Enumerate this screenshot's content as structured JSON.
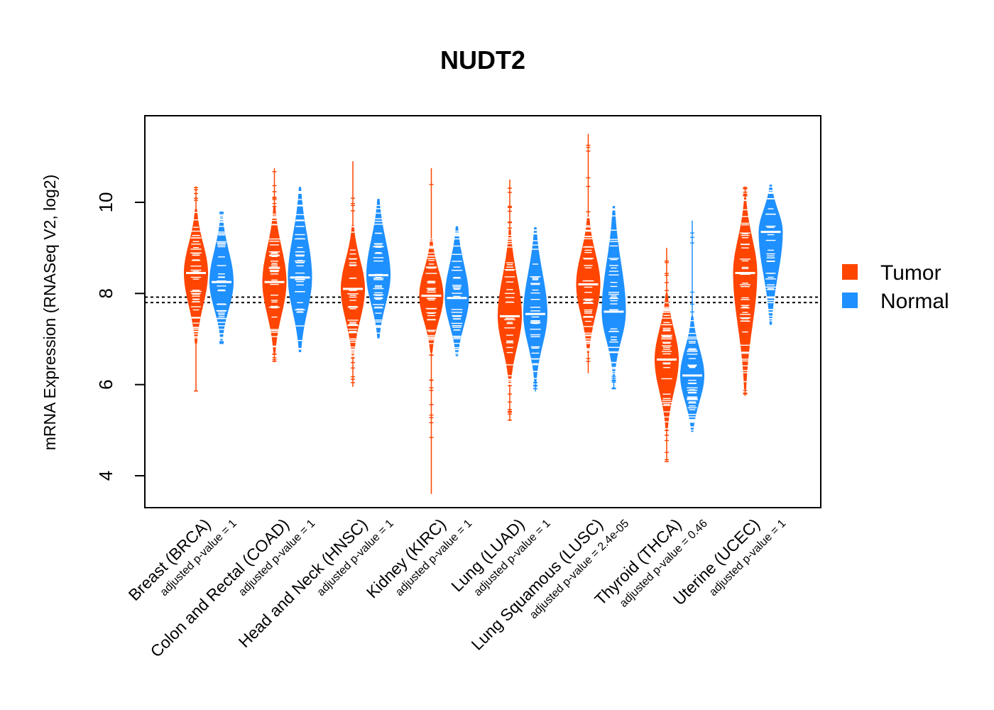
{
  "chart_data": {
    "type": "violin",
    "title": "NUDT2",
    "xlabel": "",
    "ylabel": "mRNA Expression (RNASeq V2, log2)",
    "ylim": [
      3.3,
      11.9
    ],
    "yticks": [
      4,
      6,
      8,
      10
    ],
    "reference_lines": [
      7.8,
      7.92
    ],
    "legend": {
      "position": "right",
      "entries": [
        {
          "name": "Tumor",
          "color": "#FF4500"
        },
        {
          "name": "Normal",
          "color": "#1E90FF"
        }
      ]
    },
    "categories": [
      {
        "label": "Breast (BRCA)",
        "pvalue_text": "adjusted p-value = 1",
        "tumor": {
          "median": 8.45,
          "core": [
            6.9,
            9.85
          ],
          "range": [
            5.85,
            10.35
          ]
        },
        "normal": {
          "median": 8.25,
          "core": [
            6.95,
            9.75
          ],
          "range": [
            6.9,
            9.8
          ]
        }
      },
      {
        "label": "Colon and Rectal (COAD)",
        "pvalue_text": "adjusted p-value = 1",
        "tumor": {
          "median": 8.25,
          "core": [
            6.7,
            9.9
          ],
          "range": [
            6.5,
            10.75
          ]
        },
        "normal": {
          "median": 8.35,
          "core": [
            6.7,
            10.35
          ],
          "range": [
            6.7,
            10.35
          ]
        }
      },
      {
        "label": "Head and Neck (HNSC)",
        "pvalue_text": "adjusted p-value = 1",
        "tumor": {
          "median": 8.1,
          "core": [
            6.6,
            9.5
          ],
          "range": [
            5.95,
            10.9
          ]
        },
        "normal": {
          "median": 8.4,
          "core": [
            7.0,
            10.1
          ],
          "range": [
            7.0,
            10.1
          ]
        }
      },
      {
        "label": "Kidney (KIRC)",
        "pvalue_text": "adjusted p-value = 1",
        "tumor": {
          "median": 7.95,
          "core": [
            6.7,
            9.2
          ],
          "range": [
            3.6,
            10.75
          ]
        },
        "normal": {
          "median": 7.9,
          "core": [
            6.6,
            9.5
          ],
          "range": [
            6.6,
            9.5
          ]
        }
      },
      {
        "label": "Lung (LUAD)",
        "pvalue_text": "adjusted p-value = 1",
        "tumor": {
          "median": 7.5,
          "core": [
            6.0,
            9.4
          ],
          "range": [
            5.2,
            10.5
          ]
        },
        "normal": {
          "median": 7.55,
          "core": [
            6.05,
            9.5
          ],
          "range": [
            5.85,
            9.5
          ]
        }
      },
      {
        "label": "Lung Squamous (LUSC)",
        "pvalue_text": "adjusted p-value = 2.4e-05",
        "tumor": {
          "median": 8.2,
          "core": [
            6.7,
            9.7
          ],
          "range": [
            6.25,
            11.5
          ]
        },
        "normal": {
          "median": 7.6,
          "core": [
            6.2,
            9.95
          ],
          "range": [
            5.9,
            9.95
          ]
        }
      },
      {
        "label": "Thyroid (THCA)",
        "pvalue_text": "adjusted p-value = 0.46",
        "tumor": {
          "median": 6.55,
          "core": [
            5.0,
            8.0
          ],
          "range": [
            4.3,
            9.0
          ]
        },
        "normal": {
          "median": 6.2,
          "core": [
            4.95,
            7.5
          ],
          "range": [
            4.95,
            9.6
          ]
        }
      },
      {
        "label": "Uterine (UCEC)",
        "pvalue_text": "adjusted p-value = 1",
        "tumor": {
          "median": 8.45,
          "core": [
            5.9,
            10.1
          ],
          "range": [
            5.75,
            10.35
          ]
        },
        "normal": {
          "median": 9.35,
          "core": [
            7.3,
            10.4
          ],
          "range": [
            7.3,
            10.4
          ]
        }
      }
    ]
  }
}
